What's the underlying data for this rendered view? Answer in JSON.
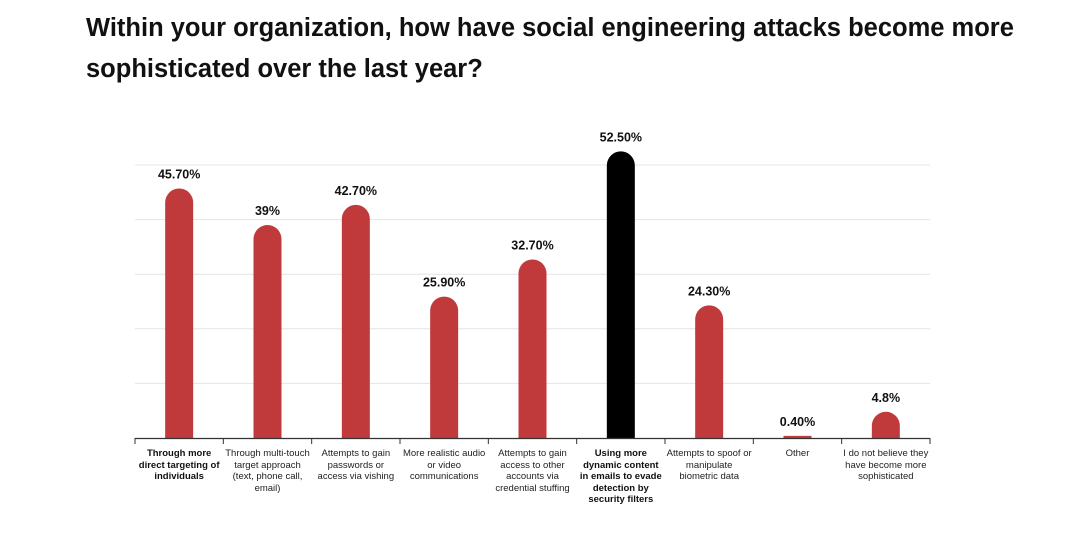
{
  "chart_data": {
    "type": "bar",
    "title": "Within your organization, how have social engineering attacks become more sophisticated over the last year?",
    "xlabel": "",
    "ylabel": "",
    "ylim": [
      0,
      55
    ],
    "grid": true,
    "categories": [
      "Through more direct targeting of individuals",
      "Through multi-touch target approach (text, phone call, email)",
      "Attempts to gain passwords or access via vishing",
      "More realistic audio or video communications",
      "Attempts to gain access to other accounts via credential stuffing",
      "Using more dynamic content in emails to evade detection by security filters",
      "Attempts to spoof or manipulate biometric data",
      "Other",
      "I do not believe they have become more sophisticated"
    ],
    "values": [
      45.7,
      39,
      42.7,
      25.9,
      32.7,
      52.5,
      24.3,
      0.4,
      4.8
    ],
    "value_labels": [
      "45.70%",
      "39%",
      "42.70%",
      "25.90%",
      "32.70%",
      "52.50%",
      "24.30%",
      "0.40%",
      "4.8%"
    ],
    "bold_categories": [
      0,
      5
    ],
    "highlight_index": 5,
    "colors": {
      "bar": "#c0393b",
      "highlight": "#000000",
      "grid": "#e4e4e4",
      "axis": "#333333"
    }
  }
}
